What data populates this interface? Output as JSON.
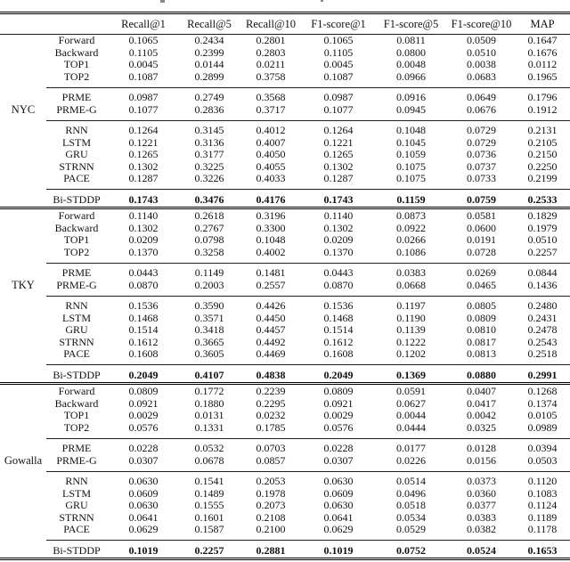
{
  "page": {
    "background": "#ffffff",
    "text_color": "#111111",
    "rule_color": "#000000"
  },
  "table": {
    "columns": [
      "",
      "",
      "Recall@1",
      "Recall@5",
      "Recall@10",
      "F1-score@1",
      "F1-score@5",
      "F1-score@10",
      "MAP"
    ],
    "sections": [
      {
        "dataset": "NYC",
        "groups": [
          {
            "bold": false,
            "rows": [
              {
                "method": "Forward",
                "values": [
                  "0.1065",
                  "0.2434",
                  "0.2801",
                  "0.1065",
                  "0.0811",
                  "0.0509",
                  "0.1647"
                ]
              },
              {
                "method": "Backward",
                "values": [
                  "0.1105",
                  "0.2399",
                  "0.2803",
                  "0.1105",
                  "0.0800",
                  "0.0510",
                  "0.1676"
                ]
              },
              {
                "method": "TOP1",
                "values": [
                  "0.0045",
                  "0.0144",
                  "0.0211",
                  "0.0045",
                  "0.0048",
                  "0.0038",
                  "0.0112"
                ]
              },
              {
                "method": "TOP2",
                "values": [
                  "0.1087",
                  "0.2899",
                  "0.3758",
                  "0.1087",
                  "0.0966",
                  "0.0683",
                  "0.1965"
                ]
              }
            ]
          },
          {
            "bold": false,
            "rows": [
              {
                "method": "PRME",
                "values": [
                  "0.0987",
                  "0.2749",
                  "0.3568",
                  "0.0987",
                  "0.0916",
                  "0.0649",
                  "0.1796"
                ]
              },
              {
                "method": "PRME-G",
                "values": [
                  "0.1077",
                  "0.2836",
                  "0.3717",
                  "0.1077",
                  "0.0945",
                  "0.0676",
                  "0.1912"
                ]
              }
            ]
          },
          {
            "bold": false,
            "rows": [
              {
                "method": "RNN",
                "values": [
                  "0.1264",
                  "0.3145",
                  "0.4012",
                  "0.1264",
                  "0.1048",
                  "0.0729",
                  "0.2131"
                ]
              },
              {
                "method": "LSTM",
                "values": [
                  "0.1221",
                  "0.3136",
                  "0.4007",
                  "0.1221",
                  "0.1045",
                  "0.0729",
                  "0.2105"
                ]
              },
              {
                "method": "GRU",
                "values": [
                  "0.1265",
                  "0.3177",
                  "0.4050",
                  "0.1265",
                  "0.1059",
                  "0.0736",
                  "0.2150"
                ]
              },
              {
                "method": "STRNN",
                "values": [
                  "0.1302",
                  "0.3225",
                  "0.4055",
                  "0.1302",
                  "0.1075",
                  "0.0737",
                  "0.2250"
                ]
              },
              {
                "method": "PACE",
                "values": [
                  "0.1287",
                  "0.3226",
                  "0.4033",
                  "0.1287",
                  "0.1075",
                  "0.0733",
                  "0.2199"
                ]
              }
            ]
          },
          {
            "bold": true,
            "rows": [
              {
                "method": "Bi-STDDP",
                "values": [
                  "0.1743",
                  "0.3476",
                  "0.4176",
                  "0.1743",
                  "0.1159",
                  "0.0759",
                  "0.2533"
                ]
              }
            ]
          }
        ]
      },
      {
        "dataset": "TKY",
        "groups": [
          {
            "bold": false,
            "rows": [
              {
                "method": "Forward",
                "values": [
                  "0.1140",
                  "0.2618",
                  "0.3196",
                  "0.1140",
                  "0.0873",
                  "0.0581",
                  "0.1829"
                ]
              },
              {
                "method": "Backward",
                "values": [
                  "0.1302",
                  "0.2767",
                  "0.3300",
                  "0.1302",
                  "0.0922",
                  "0.0600",
                  "0.1979"
                ]
              },
              {
                "method": "TOP1",
                "values": [
                  "0.0209",
                  "0.0798",
                  "0.1048",
                  "0.0209",
                  "0.0266",
                  "0.0191",
                  "0.0510"
                ]
              },
              {
                "method": "TOP2",
                "values": [
                  "0.1370",
                  "0.3258",
                  "0.4002",
                  "0.1370",
                  "0.1086",
                  "0.0728",
                  "0.2257"
                ]
              }
            ]
          },
          {
            "bold": false,
            "rows": [
              {
                "method": "PRME",
                "values": [
                  "0.0443",
                  "0.1149",
                  "0.1481",
                  "0.0443",
                  "0.0383",
                  "0.0269",
                  "0.0844"
                ]
              },
              {
                "method": "PRME-G",
                "values": [
                  "0.0870",
                  "0.2003",
                  "0.2557",
                  "0.0870",
                  "0.0668",
                  "0.0465",
                  "0.1436"
                ]
              }
            ]
          },
          {
            "bold": false,
            "rows": [
              {
                "method": "RNN",
                "values": [
                  "0.1536",
                  "0.3590",
                  "0.4426",
                  "0.1536",
                  "0.1197",
                  "0.0805",
                  "0.2480"
                ]
              },
              {
                "method": "LSTM",
                "values": [
                  "0.1468",
                  "0.3571",
                  "0.4450",
                  "0.1468",
                  "0.1190",
                  "0.0809",
                  "0.2431"
                ]
              },
              {
                "method": "GRU",
                "values": [
                  "0.1514",
                  "0.3418",
                  "0.4457",
                  "0.1514",
                  "0.1139",
                  "0.0810",
                  "0.2478"
                ]
              },
              {
                "method": "STRNN",
                "values": [
                  "0.1612",
                  "0.3665",
                  "0.4492",
                  "0.1612",
                  "0.1222",
                  "0.0817",
                  "0.2543"
                ]
              },
              {
                "method": "PACE",
                "values": [
                  "0.1608",
                  "0.3605",
                  "0.4469",
                  "0.1608",
                  "0.1202",
                  "0.0813",
                  "0.2518"
                ]
              }
            ]
          },
          {
            "bold": true,
            "rows": [
              {
                "method": "Bi-STDDP",
                "values": [
                  "0.2049",
                  "0.4107",
                  "0.4838",
                  "0.2049",
                  "0.1369",
                  "0.0880",
                  "0.2991"
                ]
              }
            ]
          }
        ]
      },
      {
        "dataset": "Gowalla",
        "groups": [
          {
            "bold": false,
            "rows": [
              {
                "method": "Forward",
                "values": [
                  "0.0809",
                  "0.1772",
                  "0.2239",
                  "0.0809",
                  "0.0591",
                  "0.0407",
                  "0.1268"
                ]
              },
              {
                "method": "Backward",
                "values": [
                  "0.0921",
                  "0.1880",
                  "0.2295",
                  "0.0921",
                  "0.0627",
                  "0.0417",
                  "0.1374"
                ]
              },
              {
                "method": "TOP1",
                "values": [
                  "0.0029",
                  "0.0131",
                  "0.0232",
                  "0.0029",
                  "0.0044",
                  "0.0042",
                  "0.0105"
                ]
              },
              {
                "method": "TOP2",
                "values": [
                  "0.0576",
                  "0.1331",
                  "0.1785",
                  "0.0576",
                  "0.0444",
                  "0.0325",
                  "0.0989"
                ]
              }
            ]
          },
          {
            "bold": false,
            "rows": [
              {
                "method": "PRME",
                "values": [
                  "0.0228",
                  "0.0532",
                  "0.0703",
                  "0.0228",
                  "0.0177",
                  "0.0128",
                  "0.0394"
                ]
              },
              {
                "method": "PRME-G",
                "values": [
                  "0.0307",
                  "0.0678",
                  "0.0857",
                  "0.0307",
                  "0.0226",
                  "0.0156",
                  "0.0503"
                ]
              }
            ]
          },
          {
            "bold": false,
            "rows": [
              {
                "method": "RNN",
                "values": [
                  "0.0630",
                  "0.1541",
                  "0.2053",
                  "0.0630",
                  "0.0514",
                  "0.0373",
                  "0.1120"
                ]
              },
              {
                "method": "LSTM",
                "values": [
                  "0.0609",
                  "0.1489",
                  "0.1978",
                  "0.0609",
                  "0.0496",
                  "0.0360",
                  "0.1083"
                ]
              },
              {
                "method": "GRU",
                "values": [
                  "0.0630",
                  "0.1555",
                  "0.2073",
                  "0.0630",
                  "0.0518",
                  "0.0377",
                  "0.1124"
                ]
              },
              {
                "method": "STRNN",
                "values": [
                  "0.0641",
                  "0.1601",
                  "0.2108",
                  "0.0641",
                  "0.0534",
                  "0.0383",
                  "0.1189"
                ]
              },
              {
                "method": "PACE",
                "values": [
                  "0.0629",
                  "0.1587",
                  "0.2100",
                  "0.0629",
                  "0.0529",
                  "0.0382",
                  "0.1178"
                ]
              }
            ]
          },
          {
            "bold": true,
            "rows": [
              {
                "method": "Bi-STDDP",
                "values": [
                  "0.1019",
                  "0.2257",
                  "0.2881",
                  "0.1019",
                  "0.0752",
                  "0.0524",
                  "0.1653"
                ]
              }
            ]
          }
        ]
      }
    ]
  }
}
